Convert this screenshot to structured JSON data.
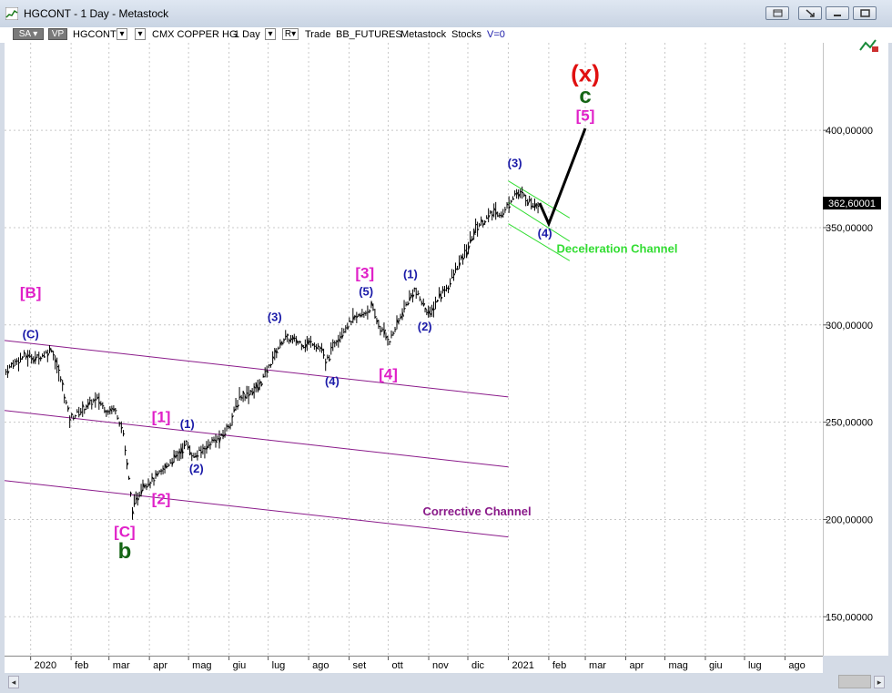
{
  "window": {
    "title": "HGCONT - 1 Day - Metastock"
  },
  "toolbar": {
    "sa": "SA",
    "vp": "VP",
    "symbol": "HGCONT",
    "name": "CMX COPPER HG",
    "period": "1 Day",
    "r_label": "R",
    "trade": "Trade",
    "exchange": "BB_FUTURES",
    "source": "Metastock",
    "stocks": "Stocks",
    "v": "V=0"
  },
  "colors": {
    "price_bars": "#000000",
    "blue_labels": "#1a1aa8",
    "magenta_labels": "#e020c8",
    "green_labels": "#146414",
    "red_label": "#e01010",
    "channel_purple": "#8a1a8a",
    "channel_green": "#33dd33"
  },
  "chart_data": {
    "type": "bar",
    "title": "",
    "y_axis": {
      "min": 130,
      "max": 445,
      "ticks": [
        "400,00000",
        "350,00000",
        "300,00000",
        "250,00000",
        "200,00000",
        "150,00000"
      ],
      "tick_values": [
        400,
        350,
        300,
        250,
        200,
        150
      ],
      "position": "right"
    },
    "x_axis": {
      "labels": [
        "2020",
        "feb",
        "mar",
        "apr",
        "mag",
        "giu",
        "lug",
        "ago",
        "set",
        "ott",
        "nov",
        "dic",
        "2021",
        "feb",
        "mar",
        "apr",
        "mag",
        "giu",
        "lug",
        "ago"
      ],
      "dates": [
        "2020-01-01",
        "2020-02-01",
        "2020-03-01",
        "2020-04-01",
        "2020-05-01",
        "2020-06-01",
        "2020-07-01",
        "2020-08-01",
        "2020-09-01",
        "2020-10-01",
        "2020-11-01",
        "2020-12-01",
        "2021-01-01",
        "2021-02-01",
        "2021-03-01",
        "2021-04-01",
        "2021-05-01",
        "2021-06-01",
        "2021-07-01",
        "2021-08-01"
      ]
    },
    "last_price": {
      "value": 362.6,
      "label": "362,60001"
    },
    "price_path": [
      [
        "2019-12-13",
        276
      ],
      [
        "2019-12-20",
        281
      ],
      [
        "2019-12-27",
        284
      ],
      [
        "2020-01-06",
        283
      ],
      [
        "2020-01-14",
        286
      ],
      [
        "2020-01-17",
        288
      ],
      [
        "2020-01-24",
        272
      ],
      [
        "2020-01-31",
        252
      ],
      [
        "2020-02-07",
        255
      ],
      [
        "2020-02-14",
        259
      ],
      [
        "2020-02-21",
        262
      ],
      [
        "2020-02-28",
        256
      ],
      [
        "2020-03-06",
        257
      ],
      [
        "2020-03-12",
        244
      ],
      [
        "2020-03-19",
        205
      ],
      [
        "2020-03-27",
        218
      ],
      [
        "2020-04-03",
        220
      ],
      [
        "2020-04-10",
        224
      ],
      [
        "2020-04-17",
        230
      ],
      [
        "2020-04-24",
        234
      ],
      [
        "2020-04-29",
        239
      ],
      [
        "2020-05-05",
        232
      ],
      [
        "2020-05-12",
        236
      ],
      [
        "2020-05-19",
        240
      ],
      [
        "2020-05-26",
        242
      ],
      [
        "2020-06-02",
        250
      ],
      [
        "2020-06-09",
        263
      ],
      [
        "2020-06-16",
        265
      ],
      [
        "2020-06-23",
        268
      ],
      [
        "2020-06-30",
        276
      ],
      [
        "2020-07-06",
        285
      ],
      [
        "2020-07-13",
        293
      ],
      [
        "2020-07-21",
        292
      ],
      [
        "2020-07-28",
        290
      ],
      [
        "2020-08-04",
        291
      ],
      [
        "2020-08-11",
        287
      ],
      [
        "2020-08-14",
        280
      ],
      [
        "2020-08-21",
        291
      ],
      [
        "2020-08-28",
        298
      ],
      [
        "2020-09-04",
        303
      ],
      [
        "2020-09-11",
        305
      ],
      [
        "2020-09-18",
        309
      ],
      [
        "2020-09-25",
        298
      ],
      [
        "2020-10-02",
        292
      ],
      [
        "2020-10-09",
        302
      ],
      [
        "2020-10-16",
        312
      ],
      [
        "2020-10-21",
        318
      ],
      [
        "2020-10-28",
        310
      ],
      [
        "2020-11-02",
        305
      ],
      [
        "2020-11-09",
        315
      ],
      [
        "2020-11-16",
        320
      ],
      [
        "2020-11-23",
        330
      ],
      [
        "2020-11-30",
        338
      ],
      [
        "2020-12-07",
        350
      ],
      [
        "2020-12-14",
        354
      ],
      [
        "2020-12-21",
        358
      ],
      [
        "2020-12-28",
        357
      ],
      [
        "2021-01-06",
        368
      ],
      [
        "2021-01-13",
        366
      ],
      [
        "2021-01-20",
        362
      ],
      [
        "2021-01-25",
        362.6
      ]
    ],
    "projection": [
      [
        "2021-01-25",
        362.6
      ],
      [
        "2021-02-01",
        352
      ],
      [
        "2021-03-01",
        401
      ]
    ],
    "channels": [
      {
        "name": "Corrective Channel",
        "color": "#8a1a8a",
        "lines": [
          [
            [
              "2019-12-12",
              292
            ],
            [
              "2021-01-01",
              263
            ]
          ],
          [
            [
              "2019-12-12",
              256
            ],
            [
              "2021-01-01",
              227
            ]
          ],
          [
            [
              "2019-12-12",
              220
            ],
            [
              "2021-01-01",
              191
            ]
          ]
        ]
      },
      {
        "name": "Deceleration Channel",
        "color": "#33dd33",
        "lines": [
          [
            [
              "2021-01-01",
              374
            ],
            [
              "2021-02-17",
              355
            ]
          ],
          [
            [
              "2021-01-01",
              363
            ],
            [
              "2021-02-17",
              343
            ]
          ],
          [
            [
              "2021-01-01",
              352
            ],
            [
              "2021-02-17",
              333
            ]
          ]
        ]
      }
    ],
    "annotations": [
      {
        "text": "[B]",
        "date": "2020-01-01",
        "y": 314,
        "color": "magenta",
        "size": 17
      },
      {
        "text": "(C)",
        "date": "2020-01-01",
        "y": 293,
        "color": "blue",
        "size": 13
      },
      {
        "text": "[1]",
        "date": "2020-04-10",
        "y": 250,
        "color": "magenta",
        "size": 17
      },
      {
        "text": "(1)",
        "date": "2020-04-30",
        "y": 247,
        "color": "blue",
        "size": 13
      },
      {
        "text": "(2)",
        "date": "2020-05-07",
        "y": 224,
        "color": "blue",
        "size": 13
      },
      {
        "text": "[2]",
        "date": "2020-04-10",
        "y": 208,
        "color": "magenta",
        "size": 17
      },
      {
        "text": "[C]",
        "date": "2020-03-13",
        "y": 191,
        "color": "magenta",
        "size": 17
      },
      {
        "text": "b",
        "date": "2020-03-13",
        "y": 180,
        "color": "green",
        "size": 24
      },
      {
        "text": "(3)",
        "date": "2020-07-06",
        "y": 302,
        "color": "blue",
        "size": 13
      },
      {
        "text": "(4)",
        "date": "2020-08-19",
        "y": 269,
        "color": "blue",
        "size": 13
      },
      {
        "text": "[3]",
        "date": "2020-09-13",
        "y": 324,
        "color": "magenta",
        "size": 17
      },
      {
        "text": "(5)",
        "date": "2020-09-14",
        "y": 315,
        "color": "blue",
        "size": 13
      },
      {
        "text": "[4]",
        "date": "2020-10-01",
        "y": 272,
        "color": "magenta",
        "size": 17
      },
      {
        "text": "(1)",
        "date": "2020-10-18",
        "y": 324,
        "color": "blue",
        "size": 13
      },
      {
        "text": "(2)",
        "date": "2020-10-29",
        "y": 297,
        "color": "blue",
        "size": 13
      },
      {
        "text": "(3)",
        "date": "2021-01-06",
        "y": 381,
        "color": "blue",
        "size": 13
      },
      {
        "text": "(4)",
        "date": "2021-01-29",
        "y": 345,
        "color": "blue",
        "size": 13
      },
      {
        "text": "Deceleration Channel",
        "date": "2021-02-07",
        "y": 337,
        "color": "green_light",
        "size": 13,
        "anchor": "start"
      },
      {
        "text": "Corrective Channel",
        "date": "2020-12-08",
        "y": 202,
        "color": "purple",
        "size": 13
      },
      {
        "text": "[5]",
        "date": "2021-03-01",
        "y": 405,
        "color": "magenta",
        "size": 17
      },
      {
        "text": "c",
        "date": "2021-03-01",
        "y": 414,
        "color": "green",
        "size": 24
      },
      {
        "text": "(x)",
        "date": "2021-03-01",
        "y": 425,
        "color": "red",
        "size": 26
      }
    ]
  }
}
